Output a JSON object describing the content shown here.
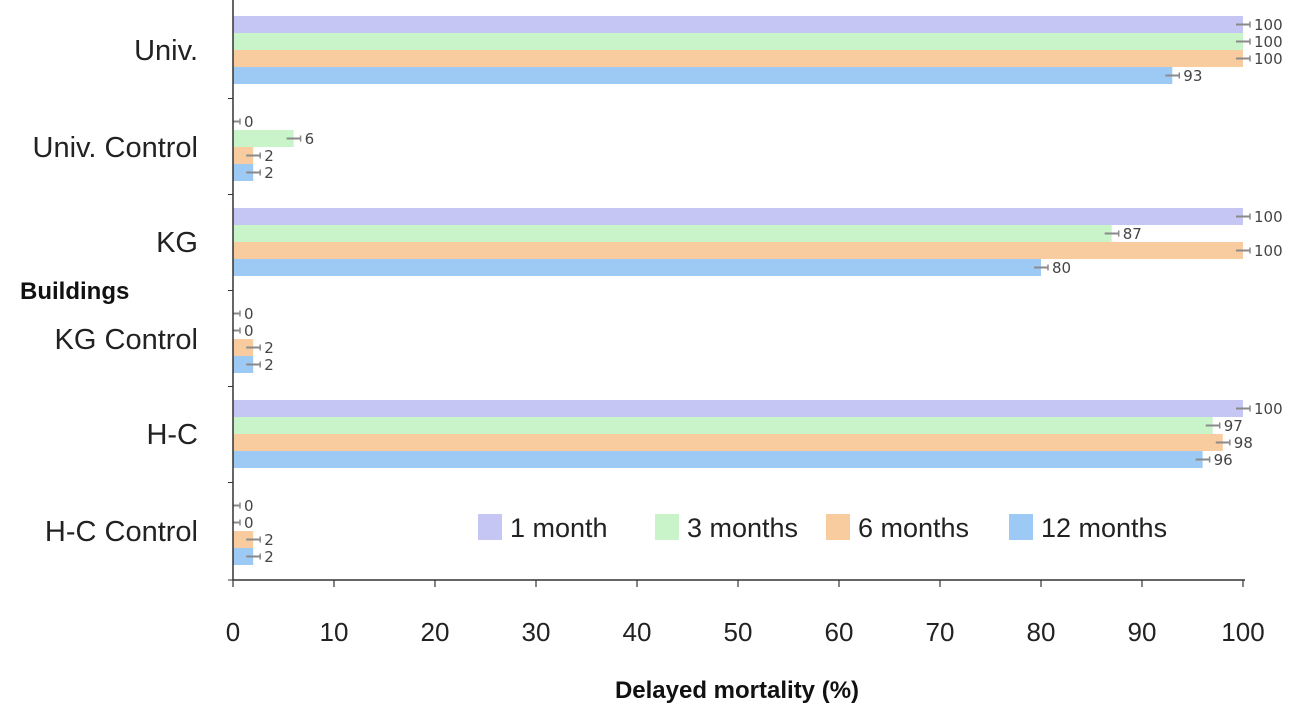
{
  "chart_data": {
    "type": "bar",
    "orientation": "horizontal",
    "title": "",
    "xlabel": "Delayed mortality (%)",
    "ylabel": "Buildings",
    "xlim": [
      0,
      100
    ],
    "x_ticks": [
      0,
      10,
      20,
      30,
      40,
      50,
      60,
      70,
      80,
      90,
      100
    ],
    "grid": false,
    "categories": [
      "Univ.",
      "Univ. Control",
      "KG",
      "KG Control",
      "H-C",
      "H-C Control"
    ],
    "series": [
      {
        "name": "1 month",
        "color": "#c6c6f5",
        "values": [
          100,
          0,
          100,
          0,
          100,
          0
        ],
        "labels": [
          "100",
          "0",
          "100",
          "0",
          "100",
          "0"
        ]
      },
      {
        "name": "3 months",
        "color": "#c9f3c9",
        "values": [
          100,
          6,
          87,
          0,
          97,
          0
        ],
        "labels": [
          "100",
          "6",
          "87",
          "0",
          "97",
          "0"
        ]
      },
      {
        "name": "6 months",
        "color": "#f8cc9e",
        "values": [
          100,
          2,
          100,
          2,
          98,
          2
        ],
        "labels": [
          "100",
          "2",
          "100",
          "2",
          "98",
          "2"
        ]
      },
      {
        "name": "12 months",
        "color": "#9dcaf5",
        "values": [
          93,
          2,
          80,
          2,
          96,
          2
        ],
        "labels": [
          "93",
          "2",
          "80",
          "2",
          "96",
          "2"
        ]
      }
    ],
    "legend_position": "bottom-right"
  }
}
